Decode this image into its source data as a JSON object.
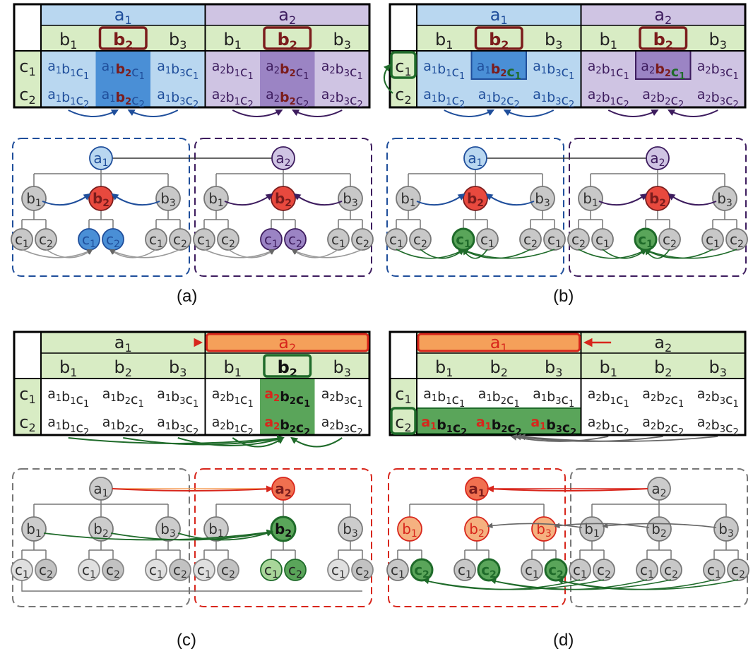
{
  "panels": [
    {
      "caption": "(a)",
      "table": {
        "top_labels": [
          "a1",
          "a2"
        ],
        "mid_labels": [
          "b1",
          "b2",
          "b3",
          "b1",
          "b2",
          "b3"
        ],
        "row_labels": [
          "c1",
          "c2"
        ],
        "cells": [
          [
            "a1b1c1",
            "a1b2c1",
            "a1b3c1",
            "a2b1c1",
            "a2b2c1",
            "a2b3c1"
          ],
          [
            "a1b1c2",
            "a1b2c2",
            "a1b3c2",
            "a2b1c2",
            "a2b2c2",
            "a2b3c2"
          ]
        ]
      },
      "tree": {
        "roots": [
          "a1",
          "a2"
        ],
        "mids": [
          "b1",
          "b2",
          "b3",
          "b1",
          "b2",
          "b3"
        ],
        "leaves": [
          "c1",
          "c2",
          "c1",
          "c2",
          "c1",
          "c2",
          "c1",
          "c2",
          "c1",
          "c2",
          "c1",
          "c2"
        ]
      }
    },
    {
      "caption": "(b)",
      "table": {
        "top_labels": [
          "a1",
          "a2"
        ],
        "mid_labels": [
          "b1",
          "b2",
          "b3",
          "b1",
          "b2",
          "b3"
        ],
        "row_labels": [
          "c1",
          "c2"
        ],
        "cells": [
          [
            "a1b1c1",
            "a1b2c1",
            "a1b3c1",
            "a2b1c1",
            "a2b2c1",
            "a2b3c1"
          ],
          [
            "a1b1c2",
            "a1b2c2",
            "a1b3c2",
            "a2b1c2",
            "a2b2c2",
            "a2b3c2"
          ]
        ]
      },
      "tree": {
        "roots": [
          "a1",
          "a2"
        ],
        "mids": [
          "b1",
          "b2",
          "b3",
          "b1",
          "b2",
          "b3"
        ],
        "leaves": [
          "c1",
          "c2",
          "c1",
          "c1",
          "c2",
          "c1",
          "c2",
          "c1",
          "c1",
          "c2"
        ]
      }
    },
    {
      "caption": "(c)",
      "table": {
        "top_labels": [
          "a1",
          "a2"
        ],
        "mid_labels": [
          "b1",
          "b2",
          "b3",
          "b1",
          "b2",
          "b3"
        ],
        "row_labels": [
          "c1",
          "c2"
        ],
        "cells": [
          [
            "a1b1c1",
            "a1b2c1",
            "a1b3c1",
            "a2b1c1",
            "a2b2c1",
            "a2b3c1"
          ],
          [
            "a1b1c2",
            "a1b2c2",
            "a1b3c2",
            "a2b1c2",
            "a2b2c2",
            "a2b3c2"
          ]
        ]
      },
      "tree": {
        "roots": [
          "a1",
          "a2"
        ],
        "mids": [
          "b1",
          "b2",
          "b3",
          "b1",
          "b2",
          "b3"
        ],
        "leaves": [
          "c1",
          "c2",
          "c1",
          "c2",
          "c1",
          "c2",
          "c1",
          "c2",
          "c1",
          "c2",
          "c1",
          "c2"
        ]
      }
    },
    {
      "caption": "(d)",
      "table": {
        "top_labels": [
          "a1",
          "a2"
        ],
        "mid_labels": [
          "b1",
          "b2",
          "b3",
          "b1",
          "b2",
          "b3"
        ],
        "row_labels": [
          "c1",
          "c2"
        ],
        "cells": [
          [
            "a1b1c1",
            "a1b2c1",
            "a1b3c1",
            "a2b1c1",
            "a2b2c1",
            "a2b3c1"
          ],
          [
            "a1b1c2",
            "a1b2c2",
            "a1b3c2",
            "a2b1c2",
            "a2b2c2",
            "a2b3c2"
          ]
        ]
      },
      "tree": {
        "roots": [
          "a1",
          "a2"
        ],
        "mids": [
          "b1",
          "b2",
          "b3",
          "b1",
          "b2",
          "b3"
        ],
        "leaves": [
          "c1",
          "c2",
          "c1",
          "c2",
          "c1",
          "c2",
          "c1",
          "c2",
          "c1",
          "c2",
          "c1",
          "c2"
        ]
      }
    }
  ],
  "colors": {
    "blue": "#1f4e9b",
    "blue_light": "#b9d7f0",
    "blue_mid": "#4a8fd6",
    "purple": "#3d1c5e",
    "purple_light": "#cfc4e3",
    "purple_mid": "#9b84c4",
    "green": "#1f6b2a",
    "green_light": "#d8ecc4",
    "green_mid": "#5aa55a",
    "red": "#d8261c",
    "orange": "#f5a05a",
    "maroon": "#7b1c1c",
    "gray": "#bdbdbd"
  }
}
